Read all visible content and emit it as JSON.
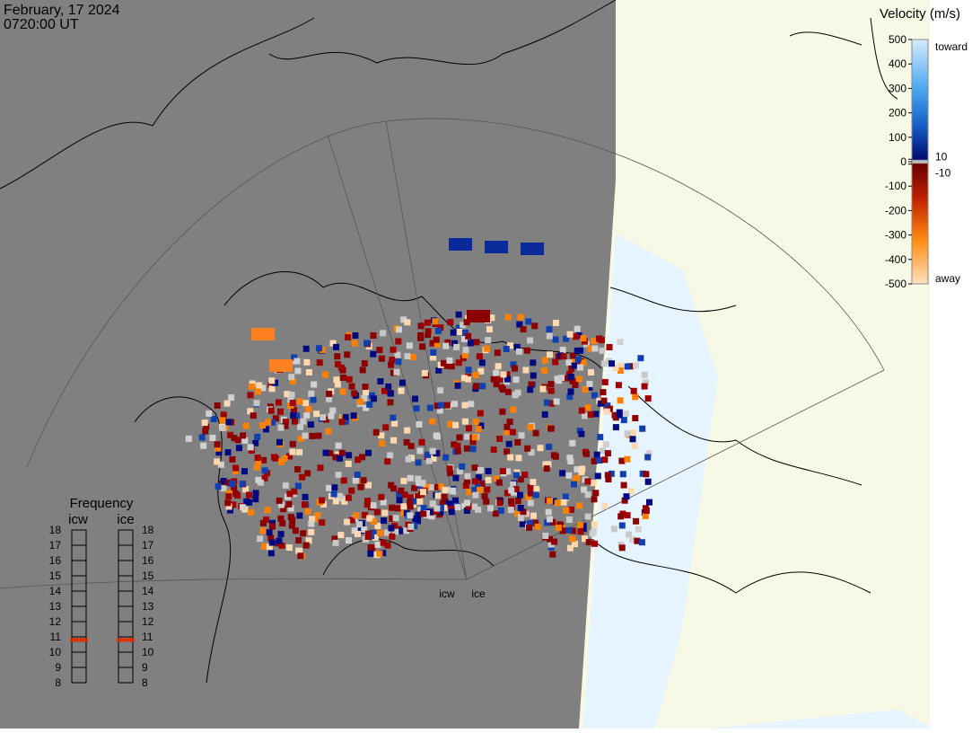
{
  "header": {
    "date": "February, 17 2024",
    "time": "0720:00 UT"
  },
  "velocity_legend": {
    "title": "Velocity (m/s)",
    "range": [
      -500,
      500
    ],
    "ticks": [
      500,
      400,
      300,
      200,
      100,
      10,
      0,
      -10,
      -100,
      -200,
      -300,
      -400,
      -500
    ],
    "toward": "toward",
    "away": "away"
  },
  "frequency_legend": {
    "title": "Frequency",
    "range": [
      8,
      18
    ],
    "ticks": [
      8,
      9,
      10,
      11,
      12,
      13,
      14,
      15,
      16,
      17,
      18
    ],
    "radars": [
      {
        "name": "icw",
        "frequency": 10.8
      },
      {
        "name": "ice",
        "frequency": 10.8
      }
    ]
  }
}
